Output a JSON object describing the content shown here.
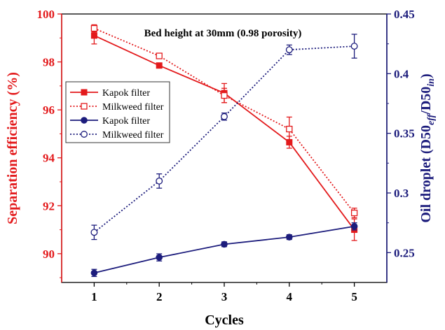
{
  "chart_data": {
    "type": "line",
    "title": "Bed height at 30mm (0.98 porosity)",
    "xlabel": "Cycles",
    "ylabel_left": "Separation efficiency (%)",
    "ylabel_right": {
      "prefix": "Oil droplet (D50",
      "sub1": "eff",
      "mid": "/D50",
      "sub2": "in",
      "suffix": ")"
    },
    "x": [
      1,
      2,
      3,
      4,
      5
    ],
    "x_ticks": [
      "1",
      "2",
      "3",
      "4",
      "5"
    ],
    "xlim": [
      0.5,
      5.5
    ],
    "ylim_left": [
      88.8,
      100
    ],
    "ylim_right": [
      0.225,
      0.45
    ],
    "left_ticks": [
      "90",
      "92",
      "94",
      "96",
      "98",
      "100"
    ],
    "right_ticks": [
      "0.25",
      "0.3",
      "0.35",
      "0.4",
      "0.45"
    ],
    "colors": {
      "left_axis": "#e31a1c",
      "right_axis": "#1c1c7c"
    },
    "series": [
      {
        "name": "Kapok filter",
        "axis": "left",
        "line": "solid",
        "marker": "filled-square",
        "color": "#e31a1c",
        "values": [
          99.1,
          97.85,
          96.7,
          94.65,
          91.0
        ],
        "errors": [
          0.35,
          0.1,
          0.4,
          0.25,
          0.45
        ]
      },
      {
        "name": "Milkweed filter",
        "axis": "left",
        "line": "dotted",
        "marker": "open-square",
        "color": "#e31a1c",
        "values": [
          99.4,
          98.25,
          96.6,
          95.2,
          91.7
        ],
        "errors": [
          0.15,
          0.1,
          0.3,
          0.5,
          0.2
        ]
      },
      {
        "name": "Kapok filter",
        "axis": "right",
        "line": "solid",
        "marker": "filled-circle",
        "color": "#1c1c7c",
        "values": [
          0.233,
          0.246,
          0.257,
          0.263,
          0.272
        ],
        "errors": [
          0.003,
          0.003,
          0.002,
          0.002,
          0.003
        ]
      },
      {
        "name": "Milkweed filter",
        "axis": "right",
        "line": "dotted",
        "marker": "open-circle",
        "color": "#1c1c7c",
        "values": [
          0.267,
          0.31,
          0.364,
          0.42,
          0.423
        ],
        "errors": [
          0.006,
          0.006,
          0.003,
          0.004,
          0.01
        ]
      }
    ],
    "legend_position": "center-left"
  }
}
